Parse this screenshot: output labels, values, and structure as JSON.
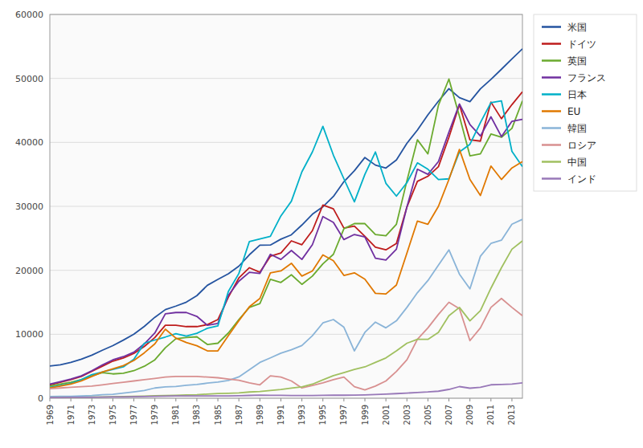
{
  "chart_data": {
    "type": "line",
    "x": [
      1969,
      1970,
      1971,
      1972,
      1973,
      1974,
      1975,
      1976,
      1977,
      1978,
      1979,
      1980,
      1981,
      1982,
      1983,
      1984,
      1985,
      1986,
      1987,
      1988,
      1989,
      1990,
      1991,
      1992,
      1993,
      1994,
      1995,
      1996,
      1997,
      1998,
      1999,
      2000,
      2001,
      2002,
      2003,
      2004,
      2005,
      2006,
      2007,
      2008,
      2009,
      2010,
      2011,
      2012,
      2013,
      2014
    ],
    "xlim": [
      1969,
      2014
    ],
    "xticks": [
      1969,
      1971,
      1973,
      1975,
      1977,
      1979,
      1981,
      1983,
      1985,
      1987,
      1989,
      1991,
      1993,
      1995,
      1997,
      1999,
      2001,
      2003,
      2005,
      2007,
      2009,
      2011,
      2013
    ],
    "ylim": [
      0,
      60000
    ],
    "yticks": [
      0,
      10000,
      20000,
      30000,
      40000,
      50000,
      60000
    ],
    "grid": true,
    "legend": "right",
    "series": [
      {
        "name": "米国",
        "color": "#2554a0",
        "values": [
          5032,
          5234,
          5609,
          6094,
          6726,
          7506,
          8225,
          9082,
          10010,
          11235,
          12657,
          13856,
          14405,
          15019,
          16034,
          17648,
          18572,
          19453,
          20650,
          22434,
          23939,
          23954,
          24866,
          25549,
          27079,
          28770,
          29930,
          31545,
          33848,
          35565,
          37638,
          36450,
          35987,
          37252,
          39861,
          41922,
          44308,
          46440,
          48395,
          46999,
          46360,
          48374,
          49855,
          51433,
          53042,
          54630
        ]
      },
      {
        "name": "ドイツ",
        "color": "#be1c1c",
        "values": [
          2100,
          2500,
          2900,
          3400,
          4200,
          5000,
          5800,
          6300,
          7000,
          8100,
          9500,
          11400,
          11400,
          11200,
          11200,
          11500,
          12300,
          15800,
          18800,
          20400,
          19700,
          22200,
          22700,
          24600,
          24000,
          26200,
          30200,
          29600,
          26600,
          26900,
          25300,
          23600,
          23200,
          24200,
          29900,
          33900,
          34700,
          36200,
          40800,
          45900,
          40400,
          40200,
          46300,
          43700,
          45900,
          47900
        ]
      },
      {
        "name": "英国",
        "color": "#6aaa2e",
        "values": [
          1900,
          2200,
          2500,
          2900,
          3500,
          4000,
          3800,
          3900,
          4300,
          5000,
          6000,
          7900,
          9300,
          9500,
          9600,
          8400,
          8600,
          10200,
          12300,
          14200,
          14800,
          18600,
          18100,
          19300,
          17800,
          19100,
          21000,
          22500,
          26500,
          27300,
          27300,
          25600,
          25400,
          27200,
          34000,
          40400,
          38200,
          45800,
          49900,
          44100,
          37900,
          38200,
          41300,
          40800,
          42200,
          46500
        ]
      },
      {
        "name": "フランス",
        "color": "#7030a0",
        "values": [
          2200,
          2600,
          3000,
          3500,
          4300,
          5200,
          6000,
          6500,
          7200,
          8500,
          10200,
          13200,
          13400,
          13400,
          12800,
          11400,
          11700,
          16100,
          18300,
          19700,
          19500,
          22500,
          21700,
          23100,
          21700,
          24000,
          28400,
          27500,
          24800,
          25600,
          25200,
          21900,
          21600,
          23300,
          29900,
          35800,
          35000,
          37000,
          41600,
          46000,
          42800,
          41000,
          44000,
          40900,
          43300,
          43600
        ]
      },
      {
        "name": "日本",
        "color": "#00b0c8",
        "values": [
          1700,
          2000,
          2300,
          2900,
          3700,
          4100,
          4500,
          4900,
          6100,
          8600,
          9100,
          9570,
          10100,
          9700,
          10150,
          10930,
          11300,
          16700,
          19500,
          24500,
          24900,
          25300,
          28500,
          30800,
          35400,
          38500,
          42500,
          38000,
          34300,
          30700,
          35000,
          38500,
          33600,
          31600,
          33700,
          36800,
          35800,
          34200,
          34300,
          38500,
          39700,
          43100,
          46200,
          46500,
          38600,
          36200
        ]
      },
      {
        "name": "EU",
        "color": "#e07800",
        "values": [
          1600,
          1900,
          2200,
          2700,
          3400,
          4100,
          4600,
          5100,
          5900,
          7100,
          8500,
          10800,
          9400,
          8700,
          8200,
          7400,
          7400,
          9800,
          12100,
          14300,
          15600,
          19600,
          19900,
          21100,
          19100,
          19900,
          22400,
          21500,
          19200,
          19600,
          18600,
          16400,
          16300,
          17700,
          22700,
          27700,
          27200,
          30000,
          34200,
          38900,
          34200,
          31700,
          36300,
          34200,
          36000,
          37000
        ]
      },
      {
        "name": "韓国",
        "color": "#8ab4d8",
        "values": [
          250,
          280,
          310,
          350,
          410,
          560,
          620,
          800,
          1000,
          1200,
          1600,
          1780,
          1840,
          2020,
          2140,
          2360,
          2530,
          2770,
          3340,
          4460,
          5600,
          6310,
          7050,
          7570,
          8240,
          9770,
          11770,
          12300,
          11100,
          7400,
          10300,
          11900,
          11000,
          12100,
          14200,
          16500,
          18400,
          20800,
          23200,
          19400,
          17100,
          22200,
          24200,
          24700,
          27200,
          27970
        ]
      },
      {
        "name": "ロシア",
        "color": "#d89090",
        "values": [
          1500,
          1600,
          1700,
          1800,
          1900,
          2100,
          2300,
          2500,
          2700,
          2900,
          3100,
          3300,
          3400,
          3400,
          3400,
          3300,
          3200,
          3000,
          2800,
          2400,
          2100,
          3500,
          3300,
          2700,
          1600,
          2000,
          2400,
          2900,
          3300,
          1800,
          1300,
          1900,
          2700,
          4200,
          6000,
          9200,
          11000,
          13100,
          15000,
          14000,
          9000,
          11000,
          14200,
          15600,
          14200,
          12900
        ]
      },
      {
        "name": "中国",
        "color": "#a0c060",
        "values": [
          100,
          120,
          130,
          150,
          170,
          200,
          230,
          250,
          280,
          320,
          380,
          430,
          460,
          510,
          560,
          650,
          730,
          770,
          840,
          970,
          1060,
          1200,
          1370,
          1580,
          1780,
          2200,
          2870,
          3530,
          4000,
          4500,
          4900,
          5600,
          6300,
          7400,
          8600,
          9200,
          9200,
          10300,
          12900,
          14200,
          12100,
          13700,
          17200,
          20400,
          23300,
          24600
        ]
      },
      {
        "name": "インド",
        "color": "#9878b8",
        "values": [
          100,
          120,
          130,
          140,
          150,
          170,
          200,
          210,
          230,
          260,
          290,
          320,
          350,
          360,
          370,
          350,
          360,
          370,
          400,
          440,
          490,
          450,
          450,
          430,
          420,
          420,
          450,
          480,
          470,
          480,
          520,
          580,
          650,
          720,
          800,
          900,
          980,
          1100,
          1380,
          1820,
          1570,
          1710,
          2100,
          2150,
          2200,
          2400
        ]
      }
    ]
  }
}
